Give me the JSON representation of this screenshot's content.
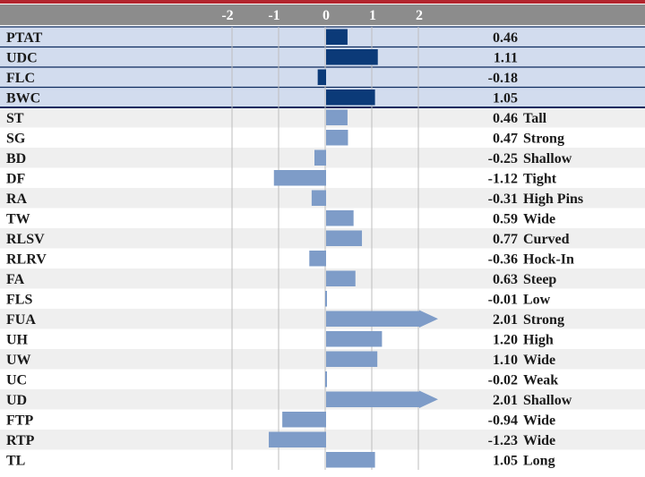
{
  "colors": {
    "top_rule": "#b3262e",
    "header_bg": "#8c8c8c",
    "row_alt": "#efefef",
    "row_plain": "#ffffff",
    "highlight_row": "#d2dcee",
    "highlight_rule": "#0d2a5e",
    "bar_highlight": "#0b3a78",
    "bar_normal": "#7e9cc8",
    "grid": "#bdbdbd"
  },
  "chart_data": {
    "type": "bar",
    "orientation": "horizontal",
    "xlim": [
      -2,
      2
    ],
    "x_ticks": [
      "-2",
      "-1",
      "0",
      "1",
      "2"
    ],
    "grid": true,
    "rows": [
      {
        "label": "PTAT",
        "value": 0.46,
        "value_text": "0.46",
        "desc": "",
        "highlight": true
      },
      {
        "label": "UDC",
        "value": 1.11,
        "value_text": "1.11",
        "desc": "",
        "highlight": true
      },
      {
        "label": "FLC",
        "value": -0.18,
        "value_text": "-0.18",
        "desc": "",
        "highlight": true
      },
      {
        "label": "BWC",
        "value": 1.05,
        "value_text": "1.05",
        "desc": "",
        "highlight": true
      },
      {
        "label": "ST",
        "value": 0.46,
        "value_text": "0.46",
        "desc": "Tall",
        "highlight": false
      },
      {
        "label": "SG",
        "value": 0.47,
        "value_text": "0.47",
        "desc": "Strong",
        "highlight": false
      },
      {
        "label": "BD",
        "value": -0.25,
        "value_text": "-0.25",
        "desc": "Shallow",
        "highlight": false
      },
      {
        "label": "DF",
        "value": -1.12,
        "value_text": "-1.12",
        "desc": "Tight",
        "highlight": false
      },
      {
        "label": "RA",
        "value": -0.31,
        "value_text": "-0.31",
        "desc": "High Pins",
        "highlight": false
      },
      {
        "label": "TW",
        "value": 0.59,
        "value_text": "0.59",
        "desc": "Wide",
        "highlight": false
      },
      {
        "label": "RLSV",
        "value": 0.77,
        "value_text": "0.77",
        "desc": "Curved",
        "highlight": false
      },
      {
        "label": "RLRV",
        "value": -0.36,
        "value_text": "-0.36",
        "desc": "Hock-In",
        "highlight": false
      },
      {
        "label": "FA",
        "value": 0.63,
        "value_text": "0.63",
        "desc": "Steep",
        "highlight": false
      },
      {
        "label": "FLS",
        "value": -0.01,
        "value_text": "-0.01",
        "desc": "Low",
        "highlight": false
      },
      {
        "label": "FUA",
        "value": 2.01,
        "value_text": "2.01",
        "desc": "Strong",
        "highlight": false
      },
      {
        "label": "UH",
        "value": 1.2,
        "value_text": "1.20",
        "desc": "High",
        "highlight": false
      },
      {
        "label": "UW",
        "value": 1.1,
        "value_text": "1.10",
        "desc": "Wide",
        "highlight": false
      },
      {
        "label": "UC",
        "value": -0.02,
        "value_text": "-0.02",
        "desc": "Weak",
        "highlight": false
      },
      {
        "label": "UD",
        "value": 2.01,
        "value_text": "2.01",
        "desc": "Shallow",
        "highlight": false
      },
      {
        "label": "FTP",
        "value": -0.94,
        "value_text": "-0.94",
        "desc": "Wide",
        "highlight": false
      },
      {
        "label": "RTP",
        "value": -1.23,
        "value_text": "-1.23",
        "desc": "Wide",
        "highlight": false
      },
      {
        "label": "TL",
        "value": 1.05,
        "value_text": "1.05",
        "desc": "Long",
        "highlight": false
      }
    ]
  }
}
